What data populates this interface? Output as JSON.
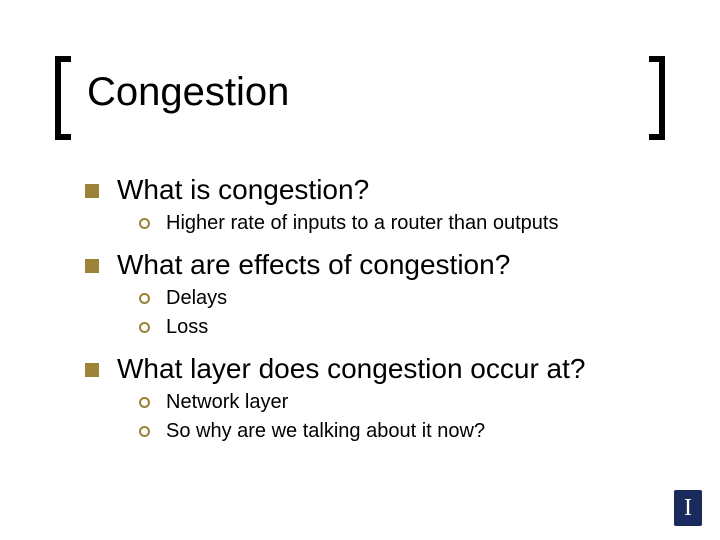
{
  "title": "Congestion",
  "colors": {
    "bullet_square": "#9b8237",
    "bullet_circle_border": "#9b8237",
    "bracket": "#000000",
    "text": "#000000",
    "logo_bg": "#1a2a5c",
    "logo_fg": "#ffffff",
    "background": "#ffffff"
  },
  "typography": {
    "title_fontsize": 40,
    "l1_fontsize": 28,
    "l2_fontsize": 20,
    "font_family": "Arial"
  },
  "logo_letter": "I",
  "items": [
    {
      "text": "What is congestion?",
      "sub": [
        "Higher rate of inputs to a router than outputs"
      ]
    },
    {
      "text": "What are effects of congestion?",
      "sub": [
        "Delays",
        "Loss"
      ]
    },
    {
      "text": "What layer does congestion occur at?",
      "sub": [
        "Network layer",
        "So why are we talking about it now?"
      ]
    }
  ]
}
